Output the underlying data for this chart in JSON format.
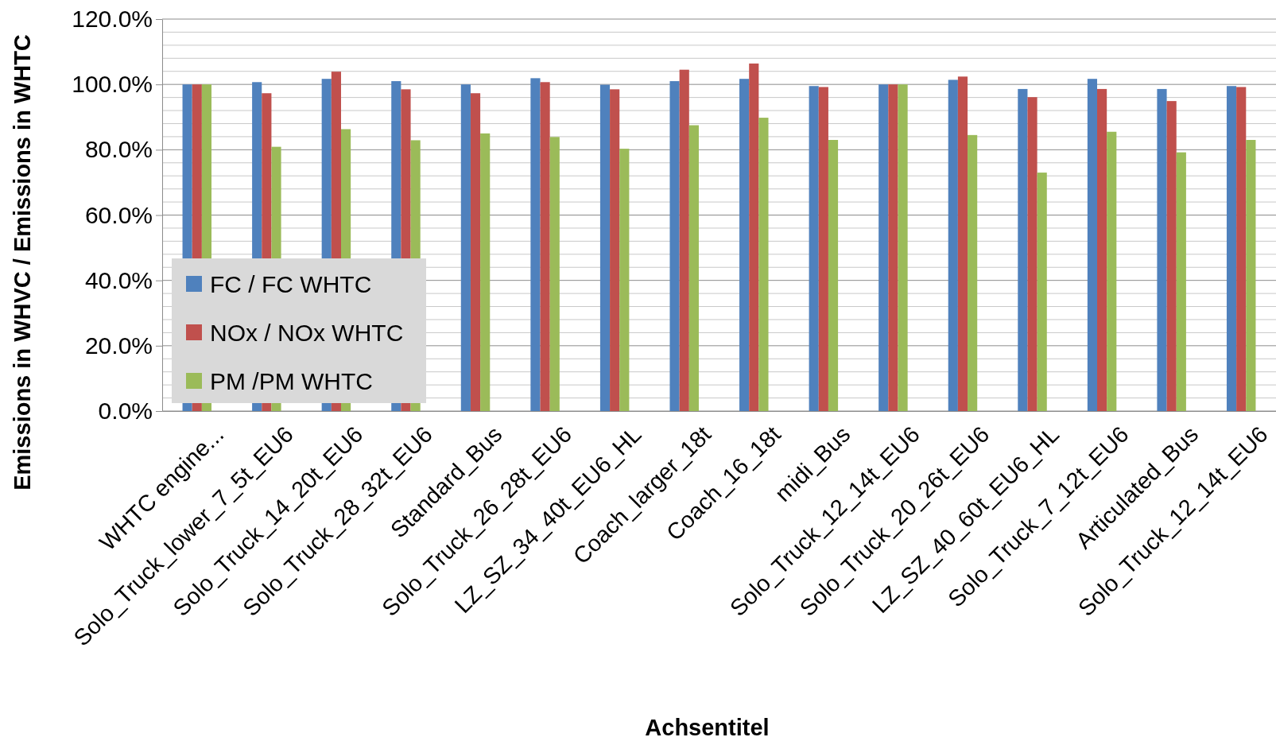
{
  "chart_data": {
    "type": "bar",
    "xlabel": "Achsentitel",
    "ylabel": "Emissions  in WHVC / Emissions in WHTC",
    "categories": [
      "WHTC engine...",
      "Solo_Truck_lower_7_5t_EU6",
      "Solo_Truck_14_20t_EU6",
      "Solo_Truck_28_32t_EU6",
      "Standard_Bus",
      "Solo_Truck_26_28t_EU6",
      "LZ_SZ_34_40t_EU6_HL",
      "Coach_larger_18t",
      "Coach_16_18t",
      "midi_Bus",
      "Solo_Truck_12_14t_EU6",
      "Solo_Truck_20_26t_EU6",
      "LZ_SZ_40_60t_EU6_HL",
      "Solo_Truck_7_12t_EU6",
      "Articulated_Bus",
      "Solo_Truck_12_14t_EU6"
    ],
    "series": [
      {
        "name": "FC / FC WHTC",
        "color": "#4f81bd",
        "values": [
          100,
          100.7,
          101.7,
          101.0,
          100,
          101.9,
          99.9,
          101.0,
          101.7,
          99.5,
          100,
          101.4,
          98.6,
          101.7,
          98.6,
          99.5
        ]
      },
      {
        "name": "NOx / NOx WHTC",
        "color": "#c0504d",
        "values": [
          100,
          97.3,
          103.9,
          98.5,
          97.3,
          100.7,
          98.5,
          104.5,
          106.4,
          99.2,
          100,
          102.4,
          96.1,
          98.6,
          94.9,
          99.2
        ]
      },
      {
        "name": "PM /PM WHTC",
        "color": "#9bbb59",
        "values": [
          100,
          80.9,
          86.3,
          82.9,
          85.0,
          83.9,
          80.3,
          87.5,
          89.8,
          83.0,
          100,
          84.5,
          73.0,
          85.5,
          79.2,
          83.0
        ]
      }
    ],
    "ylim": [
      0,
      120
    ],
    "yticks": [
      {
        "value": 0,
        "label": "0.0%"
      },
      {
        "value": 4,
        "label": null
      },
      {
        "value": 8,
        "label": null
      },
      {
        "value": 12,
        "label": null
      },
      {
        "value": 16,
        "label": null
      },
      {
        "value": 20,
        "label": "20.0%"
      },
      {
        "value": 24,
        "label": null
      },
      {
        "value": 28,
        "label": null
      },
      {
        "value": 32,
        "label": null
      },
      {
        "value": 36,
        "label": null
      },
      {
        "value": 40,
        "label": "40.0%"
      },
      {
        "value": 44,
        "label": null
      },
      {
        "value": 48,
        "label": null
      },
      {
        "value": 52,
        "label": null
      },
      {
        "value": 56,
        "label": null
      },
      {
        "value": 60,
        "label": "60.0%"
      },
      {
        "value": 64,
        "label": null
      },
      {
        "value": 68,
        "label": null
      },
      {
        "value": 72,
        "label": null
      },
      {
        "value": 76,
        "label": null
      },
      {
        "value": 80,
        "label": "80.0%"
      },
      {
        "value": 84,
        "label": null
      },
      {
        "value": 88,
        "label": null
      },
      {
        "value": 92,
        "label": null
      },
      {
        "value": 96,
        "label": null
      },
      {
        "value": 100,
        "label": "100.0%"
      },
      {
        "value": 104,
        "label": null
      },
      {
        "value": 108,
        "label": null
      },
      {
        "value": 112,
        "label": null
      },
      {
        "value": 116,
        "label": null
      },
      {
        "value": 120,
        "label": "120.0%"
      }
    ],
    "grid": "y",
    "legend": "bottom left"
  }
}
